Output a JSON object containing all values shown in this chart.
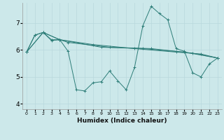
{
  "xlabel": "Humidex (Indice chaleur)",
  "bg_color": "#cce8ea",
  "grid_color": "#b8d8dc",
  "line_color": "#2d7d78",
  "xlim": [
    -0.5,
    23.5
  ],
  "ylim": [
    3.8,
    7.75
  ],
  "yticks": [
    4,
    5,
    6,
    7
  ],
  "xticks": [
    0,
    1,
    2,
    3,
    4,
    5,
    6,
    7,
    8,
    9,
    10,
    11,
    12,
    13,
    14,
    15,
    16,
    17,
    18,
    19,
    20,
    21,
    22,
    23
  ],
  "series1": [
    [
      0,
      5.92
    ],
    [
      1,
      6.55
    ],
    [
      2,
      6.65
    ],
    [
      3,
      6.35
    ],
    [
      4,
      6.38
    ],
    [
      5,
      5.95
    ],
    [
      6,
      4.52
    ],
    [
      7,
      4.48
    ],
    [
      8,
      4.78
    ],
    [
      9,
      4.82
    ],
    [
      10,
      5.22
    ],
    [
      11,
      4.85
    ],
    [
      12,
      4.52
    ],
    [
      13,
      5.35
    ],
    [
      14,
      6.9
    ],
    [
      15,
      7.62
    ],
    [
      16,
      7.35
    ],
    [
      17,
      7.12
    ],
    [
      18,
      6.05
    ],
    [
      19,
      5.95
    ],
    [
      20,
      5.15
    ],
    [
      21,
      5.0
    ],
    [
      22,
      5.48
    ],
    [
      23,
      5.7
    ]
  ],
  "series2": [
    [
      0,
      5.92
    ],
    [
      1,
      6.55
    ],
    [
      2,
      6.65
    ],
    [
      3,
      6.38
    ],
    [
      4,
      6.38
    ],
    [
      5,
      6.28
    ],
    [
      10,
      6.1
    ],
    [
      15,
      6.05
    ],
    [
      20,
      5.88
    ],
    [
      23,
      5.7
    ]
  ],
  "series3": [
    [
      0,
      5.92
    ],
    [
      2,
      6.65
    ],
    [
      4,
      6.38
    ],
    [
      9,
      6.1
    ],
    [
      14,
      6.05
    ],
    [
      19,
      5.92
    ],
    [
      23,
      5.7
    ]
  ],
  "series4": [
    [
      0,
      5.92
    ],
    [
      2,
      6.65
    ],
    [
      4,
      6.38
    ],
    [
      8,
      6.2
    ],
    [
      13,
      6.05
    ],
    [
      18,
      5.92
    ],
    [
      21,
      5.85
    ],
    [
      23,
      5.7
    ]
  ]
}
